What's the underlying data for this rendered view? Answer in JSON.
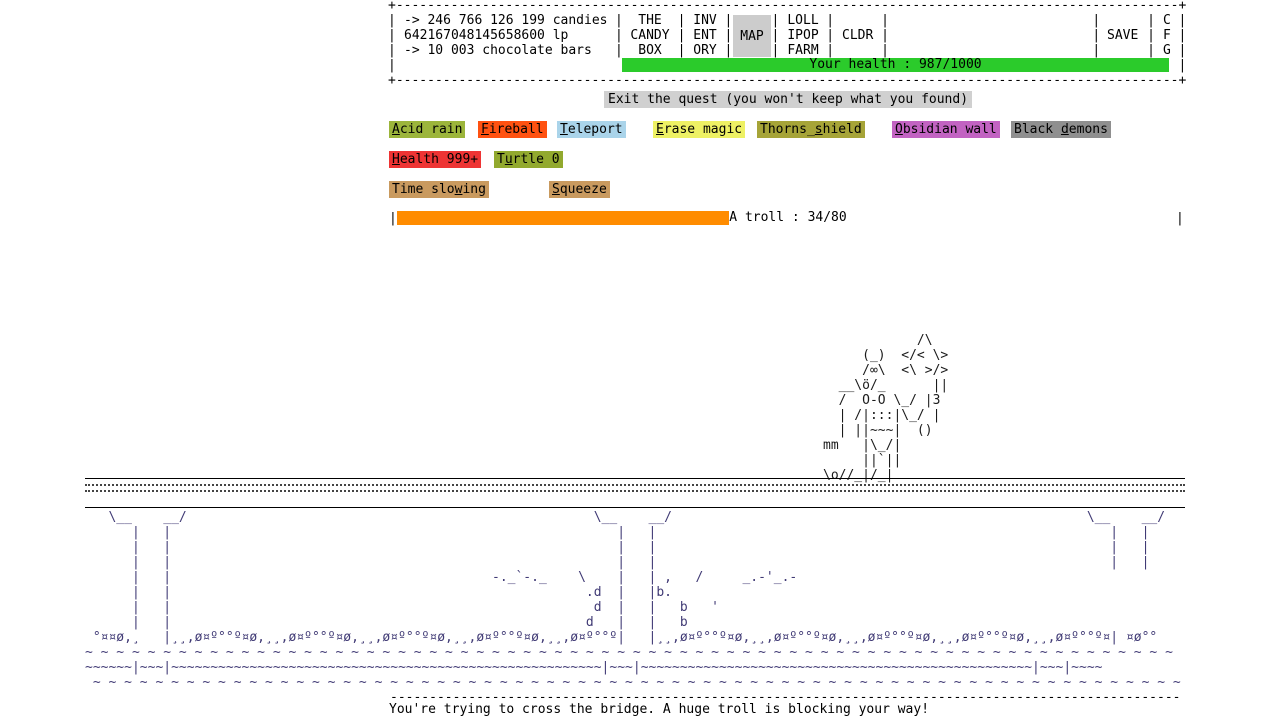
{
  "header": {
    "frame_lines": [
      "+----------------------------------------------------------------------------------------------------+",
      "|                            |       |     |     |      |      |                          |      |   |",
      "|                            |       |     |     |      |      |                          |      |   |",
      "|                            |       |     |     |      |      |                          |      |   |",
      "|                                                                                                    |",
      "+----------------------------------------------------------------------------------------------------+"
    ],
    "stats": {
      "candies": "-> 246 766 126 199 candies",
      "lollipops": "642167048145658600 lp",
      "chocolate_bars": "-> 10 003 chocolate bars"
    },
    "tabs": {
      "candy_box": [
        "THE",
        "CANDY",
        "BOX"
      ],
      "inventory": [
        "INV",
        "ENT",
        "ORY"
      ],
      "map": "MAP",
      "map_bg": "#cccccc",
      "lollipop_farm": [
        "LOLL",
        "IPOP",
        "FARM"
      ],
      "cldr": "CLDR",
      "save": "SAVE",
      "c": "C",
      "f": "F",
      "g": "G"
    },
    "health": {
      "label": "Your health : 987/1000",
      "bg": "#2bcb2b"
    }
  },
  "quest": {
    "exit_label": "Exit the quest (you won't keep what you found)",
    "exit_bg": "#d0d0d0",
    "separator": "-----------------------------------------------------------------------------------------------------",
    "message": "You're trying to cross the bridge. A huge troll is blocking your way!"
  },
  "spells": [
    {
      "name": "acid-rain",
      "pre": "",
      "key": "A",
      "post": "cid rain",
      "bg": "#9cb53b"
    },
    {
      "name": "fireball",
      "pre": "",
      "key": "F",
      "post": "ireball",
      "bg": "#ff5211"
    },
    {
      "name": "teleport",
      "pre": "",
      "key": "T",
      "post": "eleport",
      "bg": "#aad4ea"
    },
    {
      "name": "erase-magic",
      "pre": "",
      "key": "E",
      "post": "rase magic",
      "bg": "#eef164"
    },
    {
      "name": "thorns-shield",
      "pre": "Thorns_",
      "key": "s",
      "post": "hield",
      "bg": "#a6a438"
    },
    {
      "name": "obsidian-wall",
      "pre": "",
      "key": "O",
      "post": "bsidian wall",
      "bg": "#c263c2"
    },
    {
      "name": "black-demons",
      "pre": "Black ",
      "key": "d",
      "post": "emons",
      "bg": "#8f8f8f"
    },
    {
      "name": "health-999",
      "pre": "",
      "key": "H",
      "post": "ealth 999+",
      "bg": "#ee3434"
    },
    {
      "name": "turtle-0",
      "pre": "T",
      "key": "u",
      "post": "rtle 0",
      "bg": "#92a92e"
    },
    {
      "name": "time-slowing",
      "pre": "Time slo",
      "key": "w",
      "post": "ing",
      "bg": "#c99a5f"
    },
    {
      "name": "squeeze",
      "pre": "",
      "key": "S",
      "post": "queeze",
      "bg": "#c99a5f"
    }
  ],
  "troll_bar": {
    "frame": "|",
    "label": "A troll : 34/80",
    "fill": "42.5%",
    "color": "#ff8c00"
  },
  "troll_art": [
    "            /\\",
    "     (_)  </< \\>",
    "     /∞\\  <\\ >/>",
    "  __\\ö/_      ||",
    "  /  O-O \\_/ |3",
    "  | /|:::|\\_/ |",
    "  | ||~~~|  ()",
    "mm   |\\_/|",
    "     ||`||",
    "\\o//_|/_|"
  ],
  "bridge_art": [
    "   \\__    __/                                                    \\__    __/                                                     \\__    __/",
    "      |   |                                                         |   |                                                          |   |",
    "      |   |                                                         |   |                                                          |   |",
    "      |   |                                                         |   |                                                          |   |",
    "      |   |                                         -._`-._    \\    |   | ,   /     _.-'_.-",
    "      |   |                                                     .d  |   |b.",
    "      |   |                                                      d  |   |   b   '",
    "      |   |                                                     d   |   |   b",
    " °¤¤ø,¸   |¸¸,ø¤º°°º¤ø,¸¸,ø¤º°°º¤ø,¸¸,ø¤º°°º¤ø,¸¸,ø¤º°°º¤ø,¸¸,ø¤º°°º|   |¸¸,ø¤º°°º¤ø,¸¸,ø¤º°°º¤ø,¸¸,ø¤º°°º¤ø,¸¸,ø¤º°°º¤ø,¸¸,ø¤º°°º¤| ¤ø°°",
    "~ ~ ~ ~ ~ ~ ~ ~ ~ ~ ~ ~ ~ ~ ~ ~ ~ ~ ~ ~ ~ ~ ~ ~ ~ ~ ~ ~ ~ ~ ~ ~ ~ ~ ~ ~ ~ ~ ~ ~ ~ ~ ~ ~ ~ ~ ~ ~ ~ ~ ~ ~ ~ ~ ~ ~ ~ ~ ~ ~ ~ ~ ~ ~ ~ ~ ~ ~ ~ ~ ",
    "~~~~~~|~~~|~~~~~~~~~~~~~~~~~~~~~~~~~~~~~~~~~~~~~~~~~~~~~~~~~~~~~~~|~~~|~~~~~~~~~~~~~~~~~~~~~~~~~~~~~~~~~~~~~~~~~~~~~~~~~~|~~~|~~~~",
    " ~ ~ ~ ~ ~ ~ ~ ~ ~ ~ ~ ~ ~ ~ ~ ~ ~ ~ ~ ~ ~ ~ ~ ~ ~ ~ ~ ~ ~ ~ ~ ~ ~ ~ ~ ~ ~ ~ ~ ~ ~ ~ ~ ~ ~ ~ ~ ~ ~ ~ ~ ~ ~ ~ ~ ~ ~ ~ ~ ~ ~ ~ ~ ~ ~ ~ ~ ~ ~ ~"
  ]
}
